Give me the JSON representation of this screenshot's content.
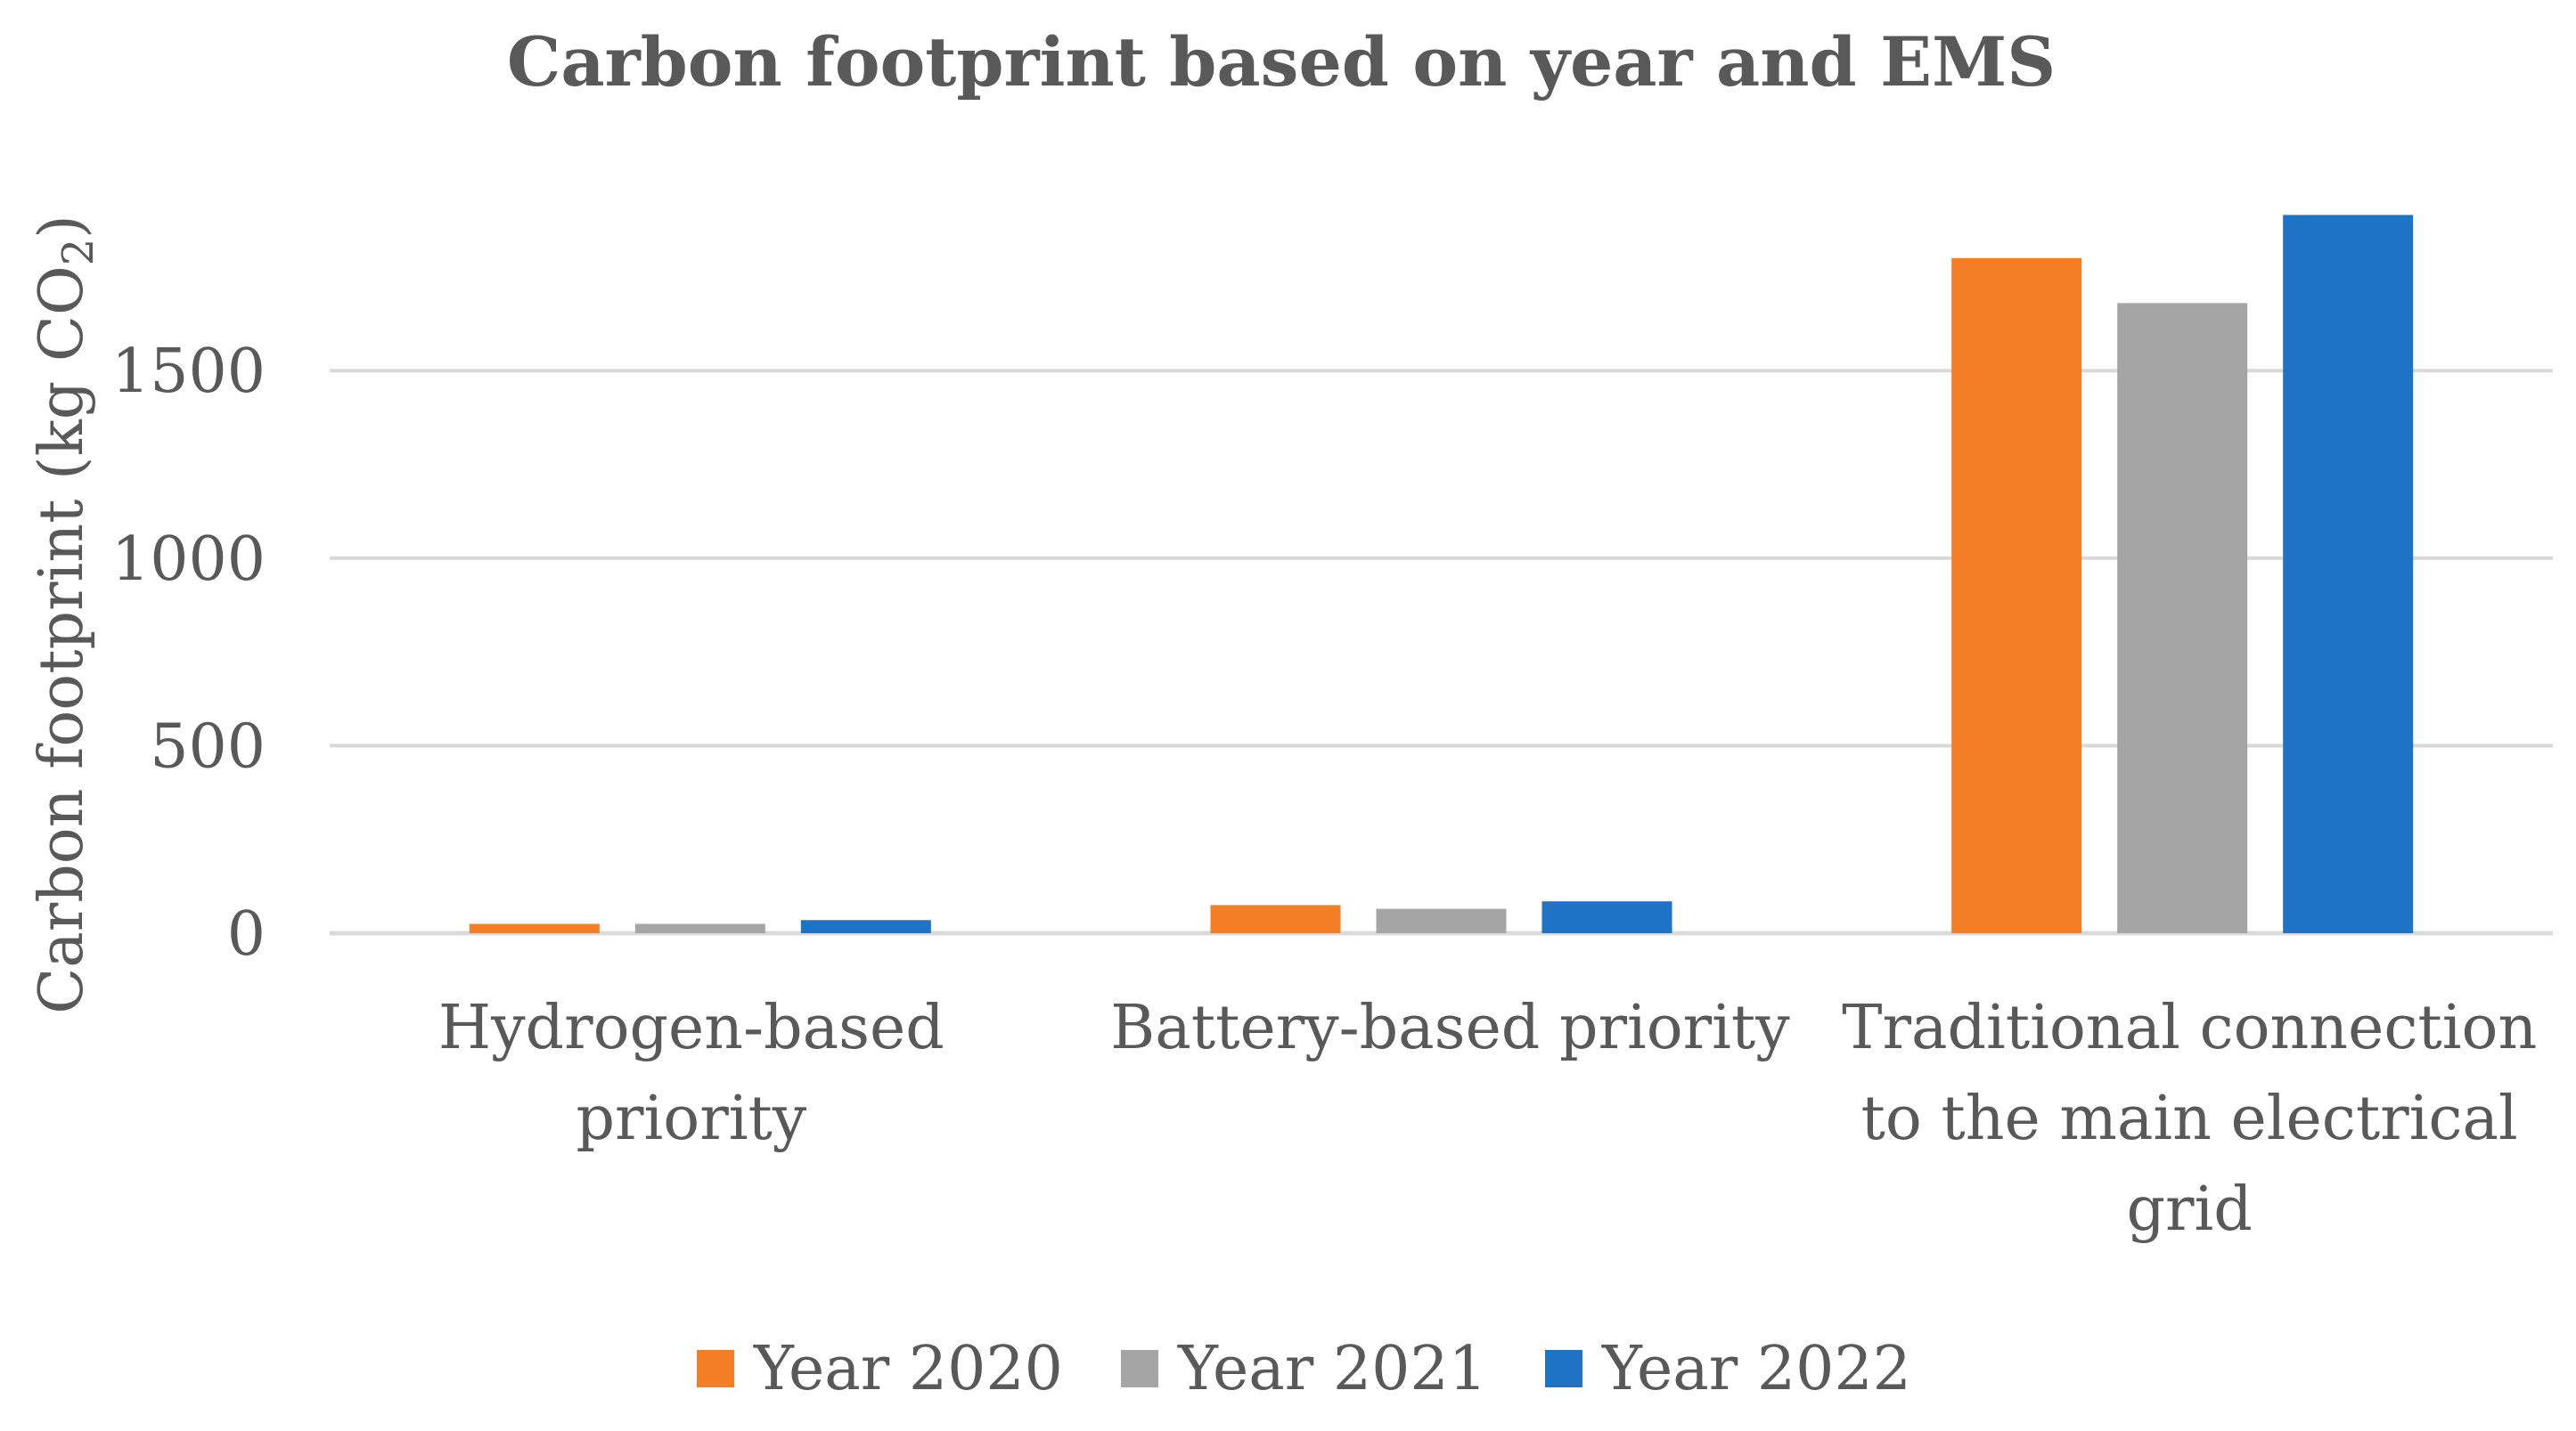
{
  "chart_data": {
    "type": "bar",
    "title": "Carbon footprint based on year and EMS",
    "xlabel": "",
    "ylabel": "Carbon footprint (kg CO",
    "ylabel_subscript": "2",
    "ylabel_suffix": ")",
    "ylim": [
      0,
      1900
    ],
    "yticks": [
      0,
      500,
      1000,
      1500
    ],
    "grid": true,
    "legend_position": "bottom",
    "categories": [
      [
        "Hydrogen-based",
        "priority"
      ],
      [
        "Battery-based priority"
      ],
      [
        "Traditional connection",
        "to the main electrical",
        "grid"
      ]
    ],
    "series": [
      {
        "name": "Year 2020",
        "color": "#F47F26",
        "values": [
          25,
          75,
          1800
        ]
      },
      {
        "name": "Year 2021",
        "color": "#A5A5A5",
        "values": [
          25,
          65,
          1680
        ]
      },
      {
        "name": "Year 2022",
        "color": "#1F73C4",
        "values": [
          35,
          85,
          1915
        ]
      }
    ]
  }
}
